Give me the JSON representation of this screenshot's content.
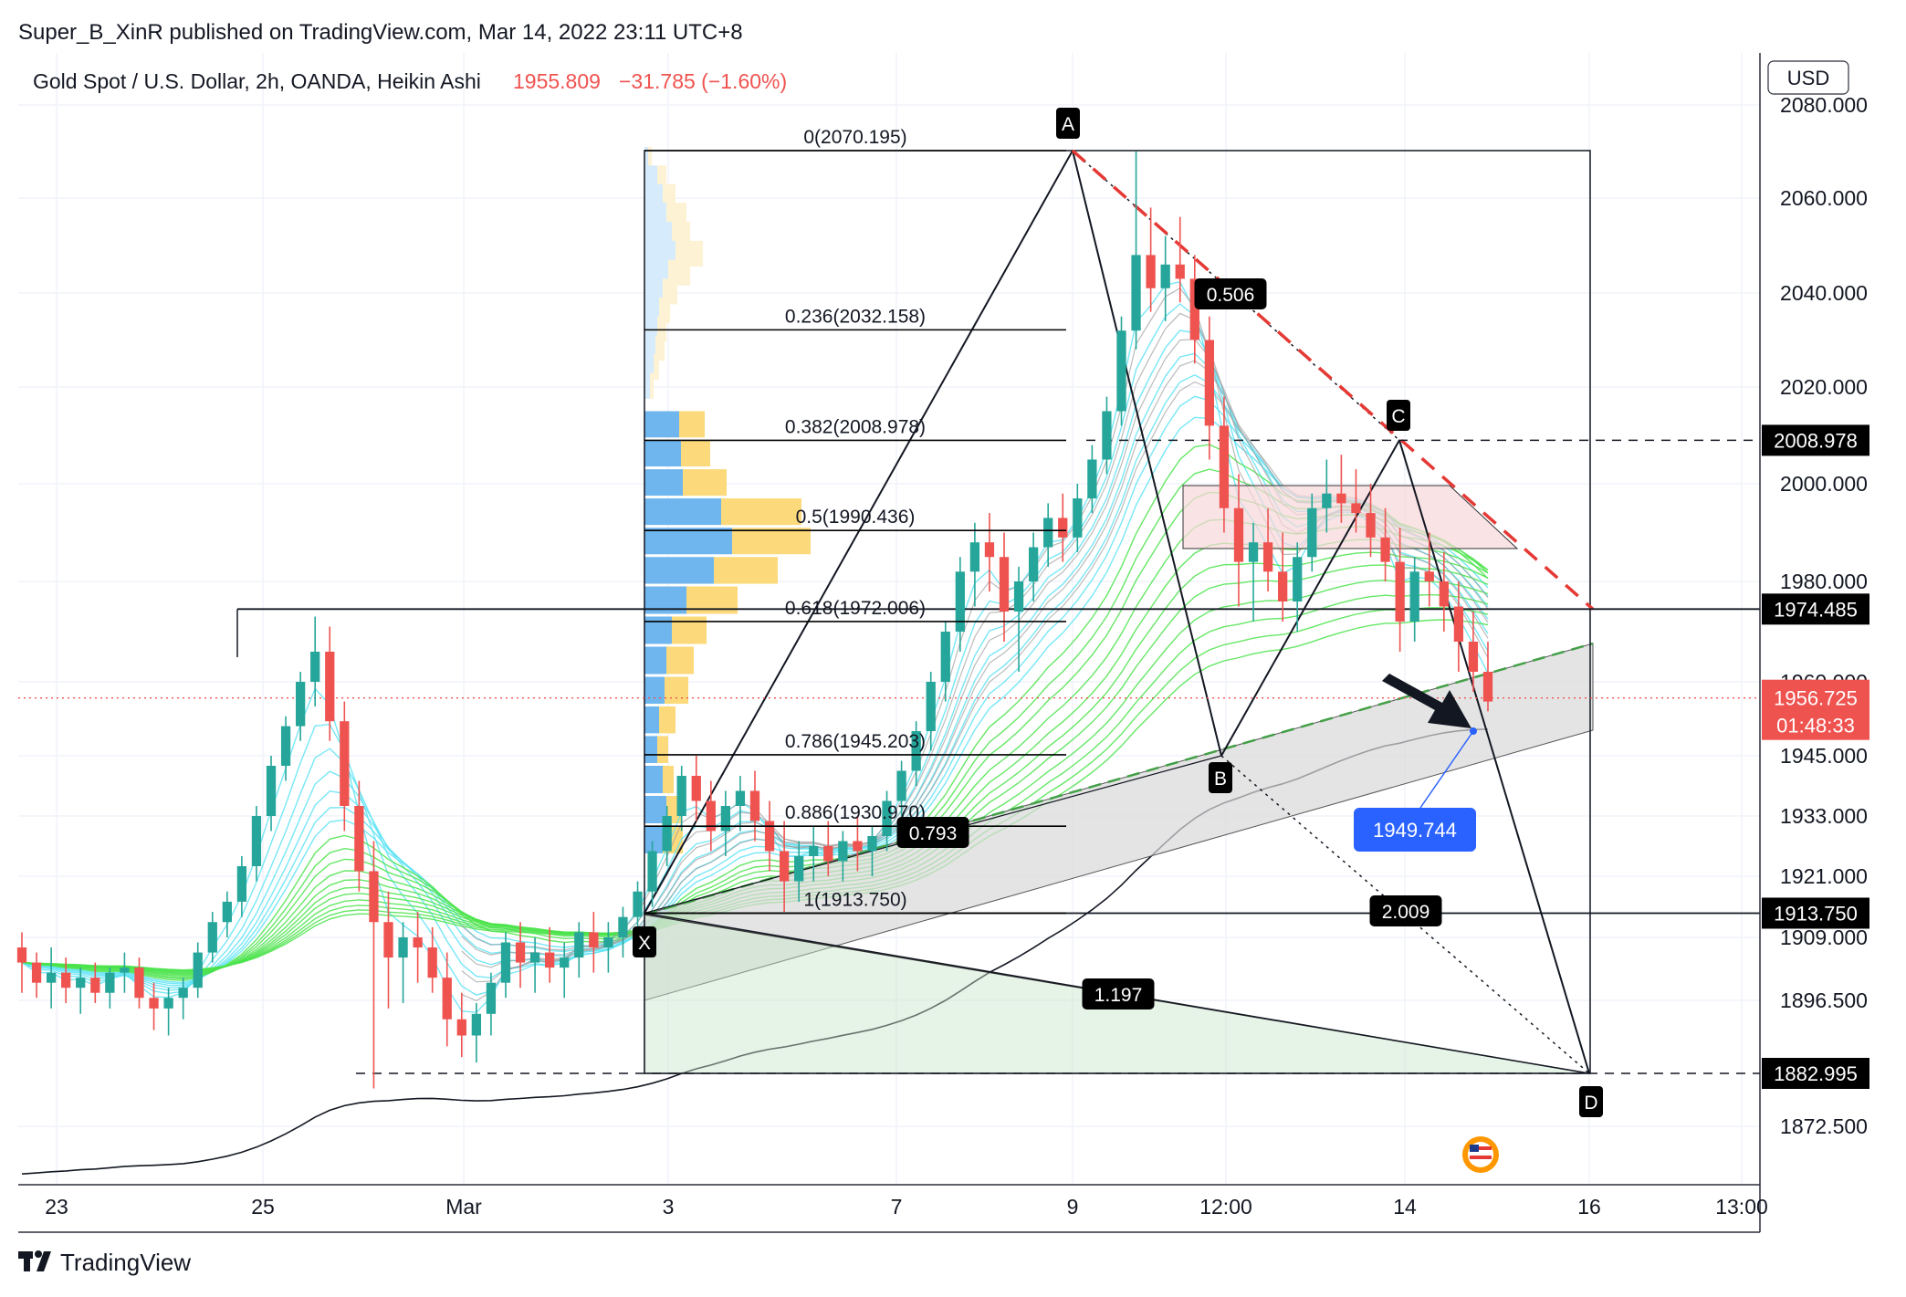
{
  "header": {
    "publisher_line": "Super_B_XinR published on TradingView.com, Mar 14, 2022 23:11 UTC+8",
    "symbol_line": "Gold Spot / U.S. Dollar, 2h, OANDA, Heikin Ashi",
    "last_price": "1955.809",
    "change": "−31.785 (−1.60%)"
  },
  "footer": {
    "brand": "TradingView"
  },
  "colors": {
    "up": "#26a69a",
    "down": "#ef5350",
    "fib_line": "#000000",
    "vp_blue": "#6fb6ef",
    "vp_yellow": "#fcd97a",
    "ribbon_green": "#4be34b",
    "ribbon_cyan": "#5fe3f5",
    "ribbon_gray": "#9e9e9e",
    "dashed_red": "#e53935",
    "label_bg": "#000000",
    "blue_label": "#2962ff",
    "price_red": "#ef5350"
  },
  "chart_data": {
    "type": "candlestick",
    "title": "Gold Spot / U.S. Dollar, 2h, OANDA, Heikin Ashi",
    "currency_label": "USD",
    "price_axis_ticks": [
      "2080.000",
      "2060.000",
      "2040.000",
      "2020.000",
      "2000.000",
      "1980.000",
      "1960.000",
      "1945.000",
      "1933.000",
      "1921.000",
      "1909.000",
      "1896.500",
      "1872.500"
    ],
    "time_axis_ticks": [
      "23",
      "25",
      "Mar",
      "3",
      "7",
      "9",
      "12:00",
      "14",
      "16",
      "13:00"
    ],
    "price_tags": [
      {
        "value": "2008.978",
        "style": "black"
      },
      {
        "value": "1974.485",
        "style": "black"
      },
      {
        "value": "1956.725",
        "sub": "01:48:33",
        "style": "red"
      },
      {
        "value": "1913.750",
        "style": "black"
      },
      {
        "value": "1882.995",
        "style": "black"
      }
    ],
    "fib_levels": [
      {
        "ratio": "0",
        "price": 2070.195,
        "label": "0(2070.195)"
      },
      {
        "ratio": "0.236",
        "price": 2032.158,
        "label": "0.236(2032.158)"
      },
      {
        "ratio": "0.382",
        "price": 2008.978,
        "label": "0.382(2008.978)"
      },
      {
        "ratio": "0.5",
        "price": 1990.436,
        "label": "0.5(1990.436)"
      },
      {
        "ratio": "0.618",
        "price": 1972.006,
        "label": "0.618(1972.006)"
      },
      {
        "ratio": "0.786",
        "price": 1945.203,
        "label": "0.786(1945.203)"
      },
      {
        "ratio": "0.886",
        "price": 1930.97,
        "label": "0.886(1930.970)"
      },
      {
        "ratio": "1",
        "price": 1913.75,
        "label": "1(1913.750)"
      }
    ],
    "harmonic_points": [
      {
        "name": "X",
        "price": 1913.75
      },
      {
        "name": "A",
        "price": 2070.195
      },
      {
        "name": "B",
        "price": 1945
      },
      {
        "name": "C",
        "price": 2009
      },
      {
        "name": "D",
        "price": 1882.995
      }
    ],
    "pattern_ratios": [
      "0.506",
      "0.793",
      "1.197",
      "2.009"
    ],
    "target_label": "1949.744",
    "candles_ohlc": [
      [
        1907,
        1910,
        1898,
        1904
      ],
      [
        1904,
        1906,
        1897,
        1900
      ],
      [
        1900,
        1907,
        1895,
        1902
      ],
      [
        1902,
        1905,
        1896,
        1899
      ],
      [
        1899,
        1903,
        1894,
        1901
      ],
      [
        1901,
        1904,
        1896,
        1898
      ],
      [
        1898,
        1903,
        1895,
        1902
      ],
      [
        1902,
        1906,
        1898,
        1903
      ],
      [
        1903,
        1905,
        1895,
        1897
      ],
      [
        1897,
        1900,
        1891,
        1895
      ],
      [
        1895,
        1899,
        1890,
        1897
      ],
      [
        1897,
        1901,
        1893,
        1899
      ],
      [
        1899,
        1908,
        1897,
        1906
      ],
      [
        1906,
        1914,
        1904,
        1912
      ],
      [
        1912,
        1918,
        1909,
        1916
      ],
      [
        1916,
        1925,
        1913,
        1923
      ],
      [
        1923,
        1935,
        1920,
        1933
      ],
      [
        1933,
        1945,
        1930,
        1943
      ],
      [
        1943,
        1953,
        1940,
        1951
      ],
      [
        1951,
        1962,
        1948,
        1960
      ],
      [
        1960,
        1973,
        1955,
        1966
      ],
      [
        1966,
        1971,
        1948,
        1952
      ],
      [
        1952,
        1956,
        1930,
        1935
      ],
      [
        1935,
        1940,
        1918,
        1922
      ],
      [
        1922,
        1928,
        1880,
        1912
      ],
      [
        1912,
        1918,
        1895,
        1905
      ],
      [
        1905,
        1912,
        1896,
        1909
      ],
      [
        1909,
        1914,
        1900,
        1907
      ],
      [
        1907,
        1911,
        1898,
        1901
      ],
      [
        1901,
        1906,
        1888,
        1893
      ],
      [
        1893,
        1898,
        1886,
        1890
      ],
      [
        1890,
        1896,
        1885,
        1894
      ],
      [
        1894,
        1902,
        1890,
        1900
      ],
      [
        1900,
        1910,
        1897,
        1908
      ],
      [
        1908,
        1912,
        1899,
        1904
      ],
      [
        1904,
        1909,
        1898,
        1906
      ],
      [
        1906,
        1911,
        1900,
        1903
      ],
      [
        1903,
        1908,
        1897,
        1905
      ],
      [
        1905,
        1912,
        1901,
        1910
      ],
      [
        1910,
        1914,
        1902,
        1907
      ],
      [
        1907,
        1912,
        1902,
        1909
      ],
      [
        1909,
        1915,
        1905,
        1913
      ],
      [
        1913,
        1920,
        1910,
        1918
      ],
      [
        1918,
        1928,
        1915,
        1926
      ],
      [
        1926,
        1935,
        1923,
        1933
      ],
      [
        1933,
        1943,
        1930,
        1941
      ],
      [
        1941,
        1945,
        1932,
        1936
      ],
      [
        1936,
        1940,
        1926,
        1930
      ],
      [
        1930,
        1938,
        1925,
        1935
      ],
      [
        1935,
        1941,
        1930,
        1938
      ],
      [
        1938,
        1942,
        1928,
        1932
      ],
      [
        1932,
        1936,
        1922,
        1926
      ],
      [
        1926,
        1932,
        1914,
        1920
      ],
      [
        1920,
        1928,
        1916,
        1925
      ],
      [
        1925,
        1931,
        1920,
        1927
      ],
      [
        1927,
        1932,
        1921,
        1924
      ],
      [
        1924,
        1930,
        1920,
        1928
      ],
      [
        1928,
        1933,
        1922,
        1926
      ],
      [
        1926,
        1931,
        1921,
        1929
      ],
      [
        1929,
        1938,
        1926,
        1936
      ],
      [
        1936,
        1944,
        1932,
        1942
      ],
      [
        1942,
        1952,
        1939,
        1950
      ],
      [
        1950,
        1962,
        1946,
        1960
      ],
      [
        1960,
        1972,
        1956,
        1970
      ],
      [
        1970,
        1985,
        1966,
        1982
      ],
      [
        1982,
        1992,
        1975,
        1988
      ],
      [
        1988,
        1994,
        1978,
        1985
      ],
      [
        1985,
        1990,
        1968,
        1974
      ],
      [
        1974,
        1983,
        1962,
        1980
      ],
      [
        1980,
        1990,
        1976,
        1987
      ],
      [
        1987,
        1996,
        1983,
        1993
      ],
      [
        1993,
        1998,
        1984,
        1989
      ],
      [
        1989,
        2000,
        1986,
        1997
      ],
      [
        1997,
        2008,
        1994,
        2005
      ],
      [
        2005,
        2018,
        2002,
        2015
      ],
      [
        2015,
        2035,
        2012,
        2032
      ],
      [
        2032,
        2070,
        2028,
        2048
      ],
      [
        2048,
        2058,
        2036,
        2041
      ],
      [
        2041,
        2052,
        2034,
        2046
      ],
      [
        2046,
        2056,
        2038,
        2043
      ],
      [
        2043,
        2048,
        2025,
        2030
      ],
      [
        2030,
        2035,
        2005,
        2012
      ],
      [
        2012,
        2018,
        1990,
        1995
      ],
      [
        1995,
        2002,
        1975,
        1984
      ],
      [
        1984,
        1992,
        1972,
        1988
      ],
      [
        1988,
        1995,
        1978,
        1982
      ],
      [
        1982,
        1990,
        1972,
        1976
      ],
      [
        1976,
        1988,
        1970,
        1985
      ],
      [
        1985,
        1998,
        1982,
        1995
      ],
      [
        1995,
        2005,
        1990,
        1998
      ],
      [
        1998,
        2006,
        1992,
        1996
      ],
      [
        1996,
        2003,
        1990,
        1994
      ],
      [
        1994,
        2000,
        1985,
        1989
      ],
      [
        1989,
        1995,
        1980,
        1984
      ],
      [
        1984,
        1991,
        1966,
        1972
      ],
      [
        1972,
        1985,
        1968,
        1982
      ],
      [
        1982,
        1990,
        1975,
        1980
      ],
      [
        1980,
        1986,
        1970,
        1975
      ],
      [
        1975,
        1980,
        1962,
        1968
      ],
      [
        1968,
        1974,
        1958,
        1962
      ],
      [
        1962,
        1968,
        1954,
        1956
      ]
    ]
  }
}
